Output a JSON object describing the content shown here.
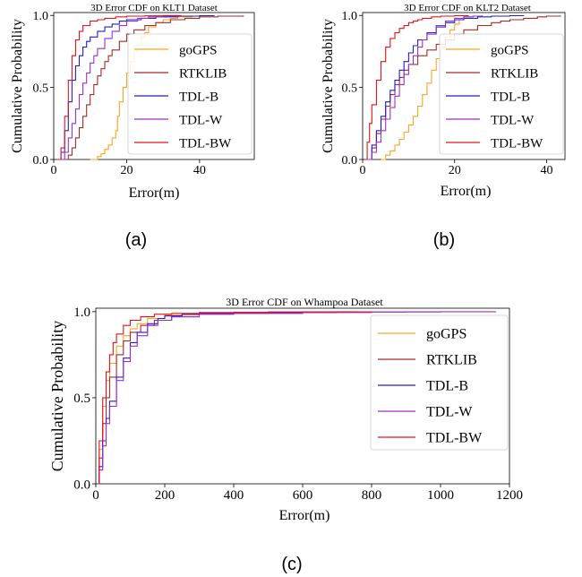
{
  "series_colors": {
    "goGPS": "#f5a623",
    "RTKLIB": "#a52a2a",
    "TDL-B": "#1f1fcf",
    "TDL-W": "#9b30c8",
    "TDL-BW": "#e8101a"
  },
  "panel_labels": [
    "(a)",
    "(b)",
    "(c)"
  ],
  "chart_data": [
    {
      "type": "line",
      "title": "3D Error CDF on KLT1  Dataset",
      "xlabel": "Error(m)",
      "ylabel": "Cumulative Probability",
      "xlim": [
        0,
        55
      ],
      "ylim": [
        0,
        1.02
      ],
      "xticks": [
        0,
        20,
        40
      ],
      "yticks": [
        0.0,
        0.5,
        1.0
      ],
      "xtick_labels": [
        "0",
        "20",
        "40"
      ],
      "ytick_labels": [
        "0.0",
        "0.5",
        "1.0"
      ],
      "legend_placement": "right",
      "series": [
        {
          "name": "goGPS",
          "x": [
            10,
            12,
            13,
            14,
            15,
            16,
            17,
            17.5,
            18,
            19,
            20,
            21,
            22,
            23,
            24,
            25,
            26,
            28,
            30,
            32,
            34,
            38
          ],
          "y": [
            0,
            0.02,
            0.04,
            0.07,
            0.1,
            0.15,
            0.2,
            0.3,
            0.4,
            0.5,
            0.6,
            0.68,
            0.75,
            0.8,
            0.85,
            0.88,
            0.92,
            0.95,
            0.97,
            0.98,
            0.99,
            1.0
          ]
        },
        {
          "name": "RTKLIB",
          "x": [
            3,
            4,
            5,
            6,
            7,
            8,
            9,
            10,
            11,
            12,
            13,
            14,
            15,
            16,
            18,
            20,
            22,
            25,
            28,
            32,
            36,
            40,
            45,
            52
          ],
          "y": [
            0,
            0.03,
            0.08,
            0.15,
            0.22,
            0.3,
            0.38,
            0.45,
            0.52,
            0.58,
            0.63,
            0.68,
            0.72,
            0.76,
            0.82,
            0.87,
            0.9,
            0.93,
            0.95,
            0.97,
            0.98,
            0.99,
            0.995,
            1.0
          ]
        },
        {
          "name": "TDL-B",
          "x": [
            1,
            2,
            3,
            4,
            5,
            6,
            7,
            8,
            9,
            10,
            12,
            14,
            16,
            18,
            20,
            24,
            28,
            34,
            40,
            44
          ],
          "y": [
            0,
            0.05,
            0.2,
            0.4,
            0.55,
            0.65,
            0.72,
            0.78,
            0.82,
            0.85,
            0.89,
            0.92,
            0.94,
            0.96,
            0.97,
            0.98,
            0.99,
            0.995,
            0.998,
            1.0
          ]
        },
        {
          "name": "TDL-W",
          "x": [
            2,
            3,
            4,
            5,
            6,
            7,
            8,
            9,
            10,
            11,
            12,
            14,
            16,
            18,
            20,
            23,
            26,
            30,
            34
          ],
          "y": [
            0,
            0.05,
            0.15,
            0.25,
            0.35,
            0.45,
            0.53,
            0.6,
            0.67,
            0.72,
            0.77,
            0.84,
            0.89,
            0.93,
            0.96,
            0.98,
            0.99,
            0.995,
            1.0
          ]
        },
        {
          "name": "TDL-BW",
          "x": [
            1,
            2,
            3,
            4,
            5,
            6,
            7,
            8,
            10,
            12,
            14,
            17,
            20,
            25,
            30,
            35
          ],
          "y": [
            0,
            0.08,
            0.3,
            0.55,
            0.72,
            0.83,
            0.89,
            0.93,
            0.96,
            0.97,
            0.98,
            0.99,
            0.995,
            0.997,
            0.999,
            1.0
          ]
        }
      ]
    },
    {
      "type": "line",
      "title": "3D Error CDF on KLT2  Dataset",
      "xlabel": "Error(m)",
      "ylabel": "Cumulative Probability",
      "xlim": [
        0,
        44
      ],
      "ylim": [
        0,
        1.02
      ],
      "xticks": [
        0,
        20,
        40
      ],
      "yticks": [
        0.0,
        0.5,
        1.0
      ],
      "xtick_labels": [
        "0",
        "20",
        "40"
      ],
      "ytick_labels": [
        "0.0",
        "0.5",
        "1.0"
      ],
      "legend_placement": "right",
      "series": [
        {
          "name": "goGPS",
          "x": [
            4,
            5,
            6,
            7,
            8,
            9,
            10,
            11,
            12,
            13,
            14,
            15,
            16,
            17,
            18,
            19,
            20,
            21,
            22,
            23
          ],
          "y": [
            0,
            0.03,
            0.06,
            0.1,
            0.14,
            0.19,
            0.24,
            0.3,
            0.37,
            0.45,
            0.53,
            0.62,
            0.7,
            0.78,
            0.85,
            0.9,
            0.94,
            0.97,
            0.99,
            1.0
          ]
        },
        {
          "name": "RTKLIB",
          "x": [
            1,
            2,
            3,
            4,
            5,
            6,
            7,
            8,
            9,
            10,
            12,
            14,
            16,
            18,
            20,
            22,
            25,
            28,
            30,
            32,
            35,
            38,
            40,
            43
          ],
          "y": [
            0,
            0.08,
            0.18,
            0.28,
            0.37,
            0.45,
            0.52,
            0.57,
            0.62,
            0.66,
            0.72,
            0.76,
            0.8,
            0.83,
            0.87,
            0.9,
            0.93,
            0.95,
            0.96,
            0.97,
            0.98,
            0.99,
            0.995,
            1.0
          ]
        },
        {
          "name": "TDL-B",
          "x": [
            1,
            2,
            3,
            4,
            5,
            6,
            7,
            8,
            9,
            10,
            11,
            12,
            14,
            16,
            18,
            20,
            22,
            25,
            28,
            32,
            35
          ],
          "y": [
            0,
            0.1,
            0.2,
            0.3,
            0.4,
            0.48,
            0.55,
            0.62,
            0.68,
            0.74,
            0.79,
            0.83,
            0.88,
            0.92,
            0.95,
            0.97,
            0.98,
            0.99,
            0.995,
            0.998,
            1.0
          ]
        },
        {
          "name": "TDL-W",
          "x": [
            1,
            2,
            3,
            4,
            5,
            6,
            7,
            8,
            9,
            10,
            11,
            12,
            13,
            14,
            16,
            18,
            20,
            22,
            24,
            26
          ],
          "y": [
            0,
            0.05,
            0.12,
            0.2,
            0.28,
            0.36,
            0.44,
            0.52,
            0.59,
            0.66,
            0.72,
            0.78,
            0.83,
            0.87,
            0.93,
            0.96,
            0.98,
            0.99,
            0.995,
            1.0
          ]
        },
        {
          "name": "TDL-BW",
          "x": [
            0.5,
            1,
            1.5,
            2,
            3,
            4,
            5,
            6,
            7,
            8,
            9,
            10,
            11,
            12,
            13,
            15,
            17,
            20,
            23
          ],
          "y": [
            0,
            0.12,
            0.25,
            0.38,
            0.55,
            0.68,
            0.78,
            0.84,
            0.88,
            0.91,
            0.93,
            0.95,
            0.96,
            0.97,
            0.98,
            0.99,
            0.995,
            0.998,
            1.0
          ]
        }
      ]
    },
    {
      "type": "line",
      "title": "3D Error CDF on Whampoa  Dataset",
      "xlabel": "Error(m)",
      "ylabel": "Cumulative Probability",
      "xlim": [
        0,
        1200
      ],
      "ylim": [
        0,
        1.02
      ],
      "xticks": [
        0,
        200,
        400,
        600,
        800,
        1000,
        1200
      ],
      "yticks": [
        0.0,
        0.5,
        1.0
      ],
      "xtick_labels": [
        "0",
        "200",
        "400",
        "600",
        "800",
        "1000",
        "1200"
      ],
      "ytick_labels": [
        "0.0",
        "0.5",
        "1.0"
      ],
      "legend_placement": "right",
      "series": [
        {
          "name": "goGPS",
          "x": [
            5,
            10,
            20,
            30,
            40,
            60,
            80,
            100,
            120,
            150,
            200,
            300,
            400,
            500,
            600,
            700,
            760
          ],
          "y": [
            0,
            0.2,
            0.45,
            0.6,
            0.7,
            0.8,
            0.86,
            0.9,
            0.93,
            0.96,
            0.98,
            0.99,
            0.995,
            0.998,
            0.999,
            0.9995,
            1.0
          ]
        },
        {
          "name": "RTKLIB",
          "x": [
            5,
            10,
            20,
            30,
            40,
            60,
            80,
            100,
            130,
            170,
            220,
            300,
            400,
            500,
            600,
            700,
            800,
            900,
            1000,
            1100,
            1160
          ],
          "y": [
            0,
            0.15,
            0.35,
            0.5,
            0.62,
            0.75,
            0.83,
            0.88,
            0.92,
            0.95,
            0.97,
            0.985,
            0.99,
            0.993,
            0.995,
            0.997,
            0.998,
            0.999,
            0.9995,
            0.9998,
            1.0
          ]
        },
        {
          "name": "TDL-B",
          "x": [
            5,
            10,
            20,
            30,
            40,
            60,
            80,
            100,
            120,
            150,
            180,
            200,
            250,
            300,
            400,
            600,
            800
          ],
          "y": [
            0,
            0.1,
            0.25,
            0.38,
            0.48,
            0.62,
            0.73,
            0.82,
            0.88,
            0.93,
            0.96,
            0.975,
            0.985,
            0.99,
            0.995,
            0.998,
            1.0
          ]
        },
        {
          "name": "TDL-W",
          "x": [
            5,
            10,
            20,
            30,
            40,
            60,
            80,
            100,
            120,
            150,
            180,
            220,
            300,
            400,
            600,
            800,
            1000,
            1160
          ],
          "y": [
            0,
            0.08,
            0.22,
            0.35,
            0.45,
            0.6,
            0.71,
            0.8,
            0.86,
            0.92,
            0.95,
            0.97,
            0.985,
            0.99,
            0.995,
            0.998,
            0.999,
            1.0
          ]
        },
        {
          "name": "TDL-BW",
          "x": [
            5,
            10,
            20,
            30,
            40,
            50,
            60,
            80,
            100,
            130,
            170,
            220,
            300,
            400,
            500,
            600,
            800
          ],
          "y": [
            0,
            0.25,
            0.5,
            0.65,
            0.75,
            0.82,
            0.87,
            0.92,
            0.95,
            0.97,
            0.985,
            0.99,
            0.995,
            0.997,
            0.998,
            0.999,
            1.0
          ]
        }
      ]
    }
  ]
}
